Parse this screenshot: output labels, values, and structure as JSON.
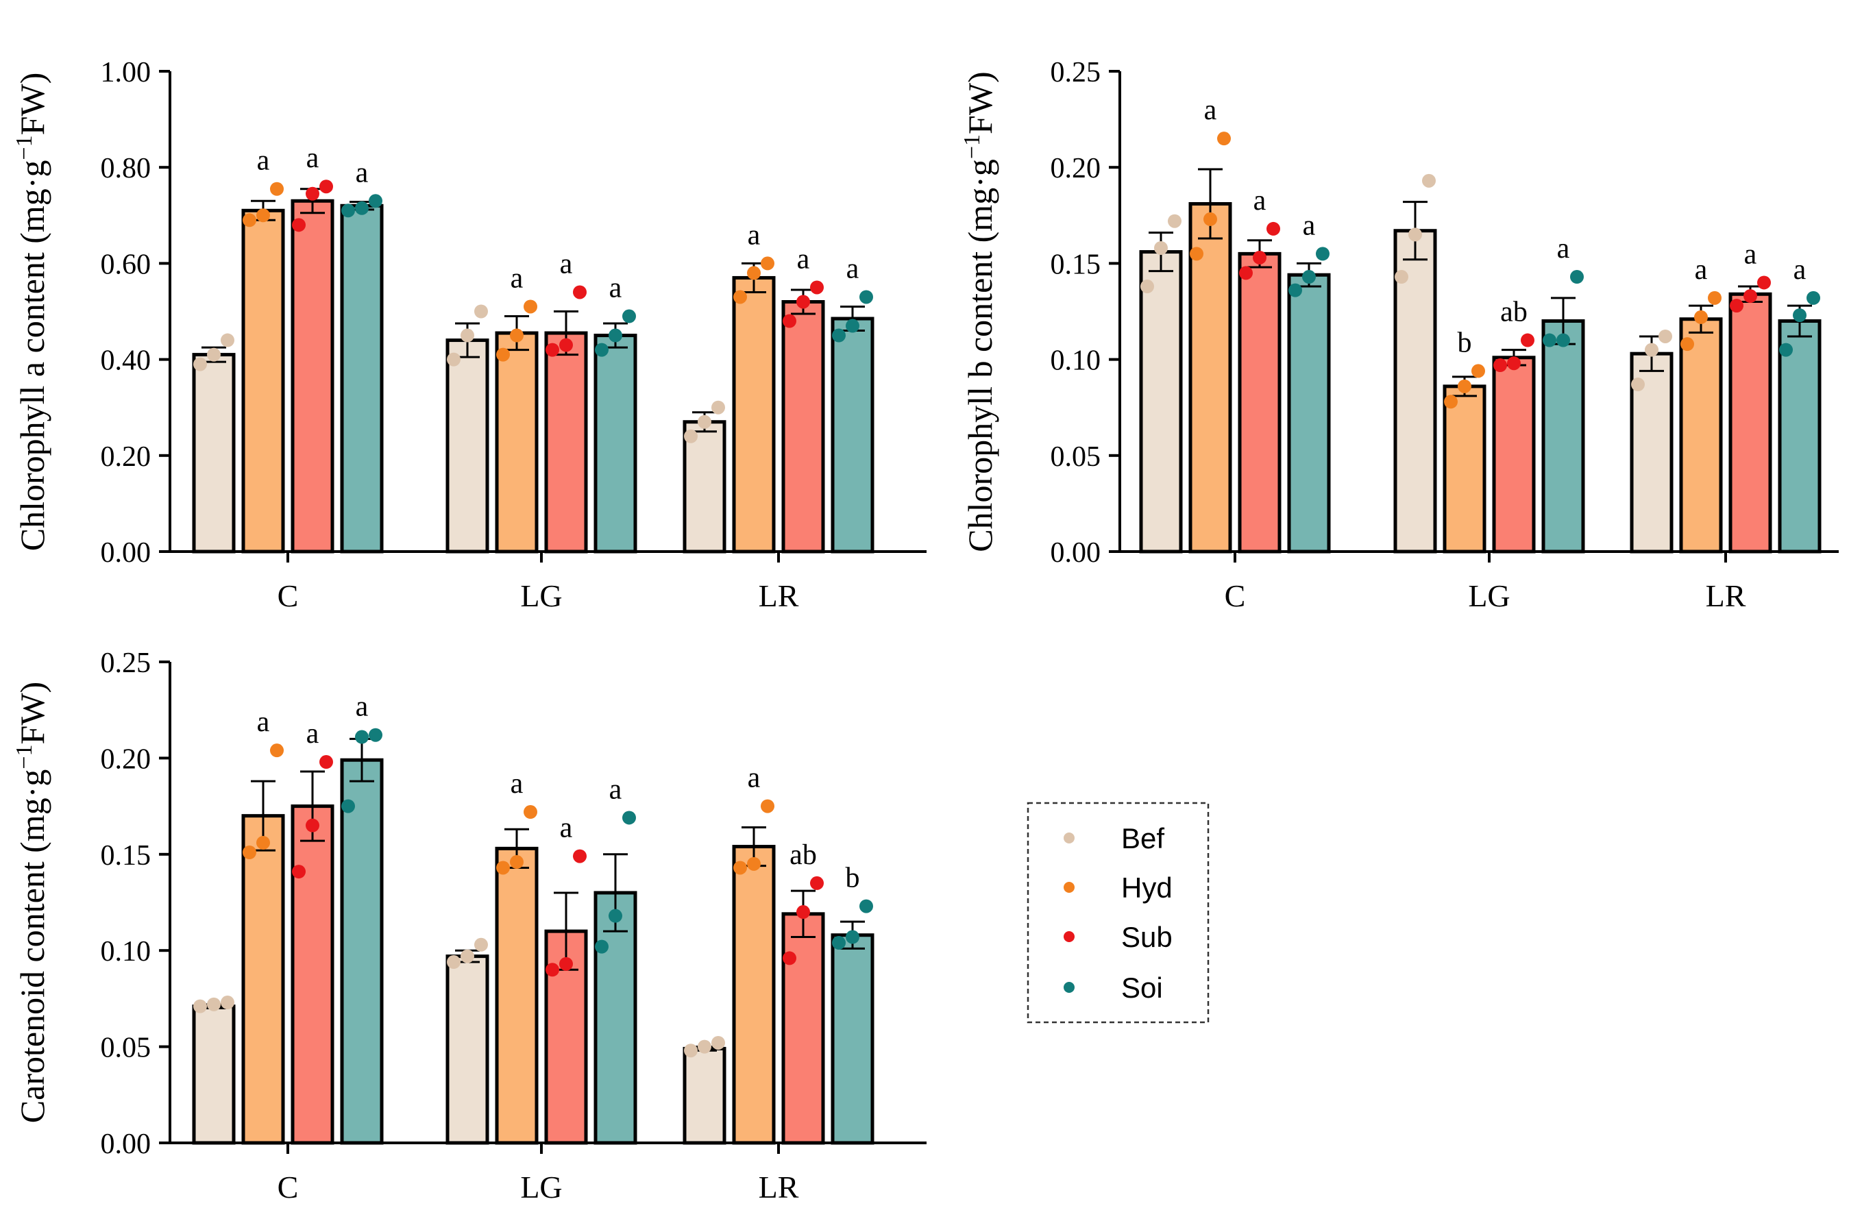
{
  "legend": {
    "entries": [
      {
        "key": "Bef",
        "label": "Bef",
        "dot": "#dcc3ab",
        "fill": "#ede0d2"
      },
      {
        "key": "Hyd",
        "label": "Hyd",
        "dot": "#f2801e",
        "fill": "#fbb475"
      },
      {
        "key": "Sub",
        "label": "Sub",
        "dot": "#e8171b",
        "fill": "#fa8072"
      },
      {
        "key": "Soi",
        "label": "Soi",
        "dot": "#127c7a",
        "fill": "#76b5b1"
      }
    ]
  },
  "chart_data": [
    {
      "id": "chla",
      "type": "bar",
      "ylabel": "Chlorophyll a content (mg·g⁻¹FW)",
      "ylabel_main": "Chlorophyll a content (mg·g",
      "ylabel_sup": "−1",
      "ylabel_end": "FW)",
      "categories": [
        "C",
        "LG",
        "LR"
      ],
      "ylim": [
        0,
        1.0
      ],
      "yticks": [
        "0.00",
        "0.20",
        "0.40",
        "0.60",
        "0.80",
        "1.00"
      ],
      "series": [
        {
          "name": "Bef",
          "values": [
            0.41,
            0.44,
            0.27
          ],
          "errors": [
            0.015,
            0.035,
            0.02
          ],
          "points": [
            [
              0.39,
              0.41,
              0.44
            ],
            [
              0.4,
              0.45,
              0.5
            ],
            [
              0.24,
              0.27,
              0.3
            ]
          ],
          "letters": [
            "",
            "",
            ""
          ]
        },
        {
          "name": "Hyd",
          "values": [
            0.71,
            0.455,
            0.57
          ],
          "errors": [
            0.02,
            0.035,
            0.03
          ],
          "points": [
            [
              0.69,
              0.7,
              0.755
            ],
            [
              0.41,
              0.45,
              0.51
            ],
            [
              0.53,
              0.58,
              0.6
            ]
          ],
          "letters": [
            "a",
            "a",
            "a"
          ]
        },
        {
          "name": "Sub",
          "values": [
            0.73,
            0.455,
            0.52
          ],
          "errors": [
            0.025,
            0.045,
            0.025
          ],
          "points": [
            [
              0.68,
              0.745,
              0.76
            ],
            [
              0.42,
              0.43,
              0.54
            ],
            [
              0.48,
              0.52,
              0.55
            ]
          ],
          "letters": [
            "a",
            "a",
            "a"
          ]
        },
        {
          "name": "Soi",
          "values": [
            0.72,
            0.45,
            0.485
          ],
          "errors": [
            0.008,
            0.025,
            0.025
          ],
          "points": [
            [
              0.71,
              0.715,
              0.73
            ],
            [
              0.42,
              0.45,
              0.49
            ],
            [
              0.45,
              0.47,
              0.53
            ]
          ],
          "letters": [
            "a",
            "a",
            "a"
          ]
        }
      ]
    },
    {
      "id": "chlb",
      "type": "bar",
      "ylabel": "Chlorophyll b content (mg·g⁻¹FW)",
      "ylabel_main": "Chlorophyll b content (mg·g",
      "ylabel_sup": "−1",
      "ylabel_end": "FW)",
      "categories": [
        "C",
        "LG",
        "LR"
      ],
      "ylim": [
        0,
        0.25
      ],
      "yticks": [
        "0.00",
        "0.05",
        "0.10",
        "0.15",
        "0.20",
        "0.25"
      ],
      "series": [
        {
          "name": "Bef",
          "values": [
            0.156,
            0.167,
            0.103
          ],
          "errors": [
            0.01,
            0.015,
            0.009
          ],
          "points": [
            [
              0.138,
              0.158,
              0.172
            ],
            [
              0.143,
              0.165,
              0.193
            ],
            [
              0.087,
              0.105,
              0.112
            ]
          ],
          "letters": [
            "",
            "",
            ""
          ]
        },
        {
          "name": "Hyd",
          "values": [
            0.181,
            0.086,
            0.121
          ],
          "errors": [
            0.018,
            0.005,
            0.007
          ],
          "points": [
            [
              0.155,
              0.173,
              0.215
            ],
            [
              0.078,
              0.086,
              0.094
            ],
            [
              0.108,
              0.122,
              0.132
            ]
          ],
          "letters": [
            "a",
            "b",
            "a"
          ]
        },
        {
          "name": "Sub",
          "values": [
            0.155,
            0.101,
            0.134
          ],
          "errors": [
            0.007,
            0.004,
            0.004
          ],
          "points": [
            [
              0.145,
              0.153,
              0.168
            ],
            [
              0.097,
              0.098,
              0.11
            ],
            [
              0.128,
              0.133,
              0.14
            ]
          ],
          "letters": [
            "a",
            "ab",
            "a"
          ]
        },
        {
          "name": "Soi",
          "values": [
            0.144,
            0.12,
            0.12
          ],
          "errors": [
            0.006,
            0.012,
            0.008
          ],
          "points": [
            [
              0.136,
              0.143,
              0.155
            ],
            [
              0.11,
              0.11,
              0.143
            ],
            [
              0.105,
              0.123,
              0.132
            ]
          ],
          "letters": [
            "a",
            "a",
            "a"
          ]
        }
      ]
    },
    {
      "id": "car",
      "type": "bar",
      "ylabel": "Carotenoid content (mg·g⁻¹FW)",
      "ylabel_main": "Carotenoid content (mg·g",
      "ylabel_sup": "−1",
      "ylabel_end": "FW)",
      "categories": [
        "C",
        "LG",
        "LR"
      ],
      "ylim": [
        0,
        0.25
      ],
      "yticks": [
        "0.00",
        "0.05",
        "0.10",
        "0.15",
        "0.20",
        "0.25"
      ],
      "series": [
        {
          "name": "Bef",
          "values": [
            0.071,
            0.097,
            0.049
          ],
          "errors": [
            0.001,
            0.003,
            0.001
          ],
          "points": [
            [
              0.071,
              0.072,
              0.073
            ],
            [
              0.094,
              0.097,
              0.103
            ],
            [
              0.048,
              0.05,
              0.052
            ]
          ],
          "letters": [
            "",
            "",
            ""
          ]
        },
        {
          "name": "Hyd",
          "values": [
            0.17,
            0.153,
            0.154
          ],
          "errors": [
            0.018,
            0.01,
            0.01
          ],
          "points": [
            [
              0.151,
              0.156,
              0.204
            ],
            [
              0.143,
              0.146,
              0.172
            ],
            [
              0.143,
              0.145,
              0.175
            ]
          ],
          "letters": [
            "a",
            "a",
            "a"
          ]
        },
        {
          "name": "Sub",
          "values": [
            0.175,
            0.11,
            0.119
          ],
          "errors": [
            0.018,
            0.02,
            0.012
          ],
          "points": [
            [
              0.141,
              0.165,
              0.198
            ],
            [
              0.09,
              0.093,
              0.149
            ],
            [
              0.096,
              0.12,
              0.135
            ]
          ],
          "letters": [
            "a",
            "a",
            "ab"
          ]
        },
        {
          "name": "Soi",
          "values": [
            0.199,
            0.13,
            0.108
          ],
          "errors": [
            0.011,
            0.02,
            0.007
          ],
          "points": [
            [
              0.175,
              0.211,
              0.212
            ],
            [
              0.102,
              0.118,
              0.169
            ],
            [
              0.104,
              0.107,
              0.123
            ]
          ],
          "letters": [
            "a",
            "a",
            "b"
          ]
        }
      ]
    }
  ]
}
